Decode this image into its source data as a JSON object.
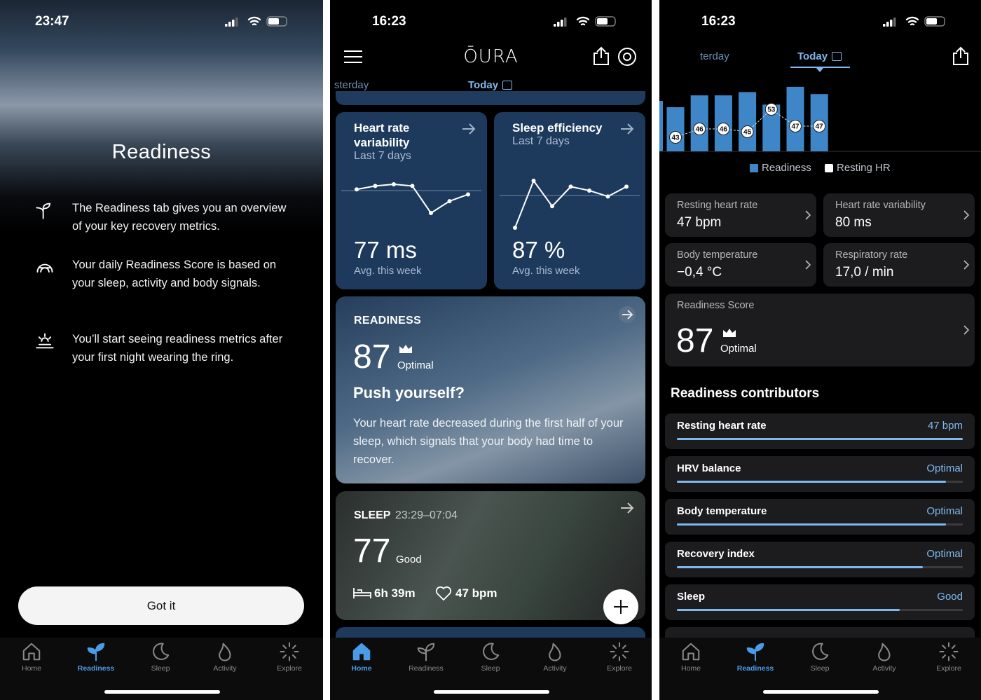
{
  "screens": [
    {
      "status_time": "23:47",
      "title": "Readiness",
      "items": [
        "The Readiness tab gives you an overview of your key recovery metrics.",
        "Your daily Readiness Score is based on your sleep, activity and body signals.",
        "You’ll start seeing readiness metrics after your first night wearing the ring."
      ],
      "button": "Got it",
      "nav": [
        "Home",
        "Readiness",
        "Sleep",
        "Activity",
        "Explore"
      ],
      "active_nav": 1
    },
    {
      "status_time": "16:23",
      "logo": "ŌURA",
      "day_tabs": [
        "sterday",
        "Today"
      ],
      "cards": [
        {
          "title": "Heart rate variability",
          "subtitle": "Last 7 days",
          "value": "77 ms",
          "caption": "Avg. this week",
          "trend": [
            80,
            82,
            83,
            82,
            66,
            73,
            77
          ]
        },
        {
          "title": "Sleep efficiency",
          "subtitle": "Last 7 days",
          "value": "87 %",
          "caption": "Avg. this week",
          "trend": [
            70,
            94,
            81,
            91,
            89,
            86,
            91
          ]
        }
      ],
      "readiness": {
        "label": "READINESS",
        "score": 87,
        "rating": "Optimal",
        "headline": "Push yourself?",
        "body": "Your heart rate decreased during the first half of your sleep, which signals that your body had time to recover."
      },
      "sleep": {
        "label": "SLEEP",
        "time": "23:29–07:04",
        "score": 77,
        "rating": "Good",
        "duration": "6h 39m",
        "heart_rate": "47 bpm"
      },
      "nav": [
        "Home",
        "Readiness",
        "Sleep",
        "Activity",
        "Explore"
      ],
      "active_nav": 0
    },
    {
      "status_time": "16:23",
      "day_tabs": [
        "terday",
        "Today"
      ],
      "chart": {
        "readiness": [
          67,
          85,
          85,
          90,
          71,
          98,
          87
        ],
        "resting_hr": [
          43,
          46,
          46,
          45,
          53,
          47,
          47
        ],
        "legend": [
          "Readiness",
          "Resting HR"
        ],
        "colors": [
          "#3f86c8",
          "#ffffff"
        ]
      },
      "tiles": [
        {
          "label": "Resting heart rate",
          "value": "47 bpm"
        },
        {
          "label": "Heart rate variability",
          "value": "80 ms"
        },
        {
          "label": "Body temperature",
          "value": "−0,4 °C"
        },
        {
          "label": "Respiratory rate",
          "value": "17,0 / min"
        }
      ],
      "score": {
        "label": "Readiness Score",
        "value": 87,
        "rating": "Optimal"
      },
      "contributors_title": "Readiness contributors",
      "contributors": [
        {
          "label": "Resting heart rate",
          "value": "47 bpm",
          "progress": 100
        },
        {
          "label": "HRV balance",
          "value": "Optimal",
          "progress": 94
        },
        {
          "label": "Body temperature",
          "value": "Optimal",
          "progress": 94
        },
        {
          "label": "Recovery index",
          "value": "Optimal",
          "progress": 86
        },
        {
          "label": "Sleep",
          "value": "Good",
          "progress": 78
        }
      ],
      "nav": [
        "Home",
        "Readiness",
        "Sleep",
        "Activity",
        "Explore"
      ],
      "active_nav": 1
    }
  ]
}
